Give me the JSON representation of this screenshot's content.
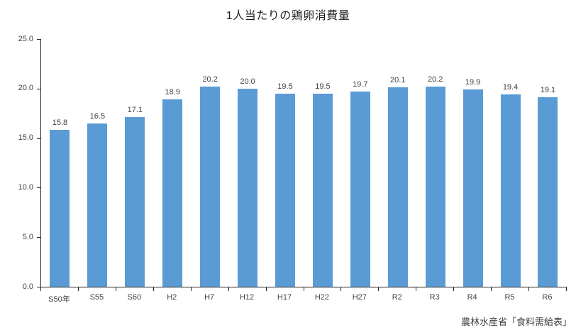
{
  "source": "農林水産省「食料需給表」",
  "chart_data": {
    "type": "bar",
    "title": "1人当たりの鶏卵消費量",
    "categories": [
      "S50年",
      "S55",
      "S60",
      "H2",
      "H7",
      "H12",
      "H17",
      "H22",
      "H27",
      "R2",
      "R3",
      "R4",
      "R5",
      "R6"
    ],
    "values": [
      15.8,
      16.5,
      17.1,
      18.9,
      20.2,
      20.0,
      19.5,
      19.5,
      19.7,
      20.1,
      20.2,
      19.9,
      19.4,
      19.1
    ],
    "xlabel": "",
    "ylabel": "",
    "ylim": [
      0,
      25
    ],
    "y_tick_step": 5,
    "y_tick_labels": [
      "25.0",
      "20.0",
      "15.0",
      "10.0",
      "5.0",
      "0.0"
    ],
    "value_labels_shown": true,
    "grid": "off",
    "legend": "none",
    "bar_color": "#5b9bd5",
    "axis_color": "#262626",
    "label_color": "#404040"
  }
}
